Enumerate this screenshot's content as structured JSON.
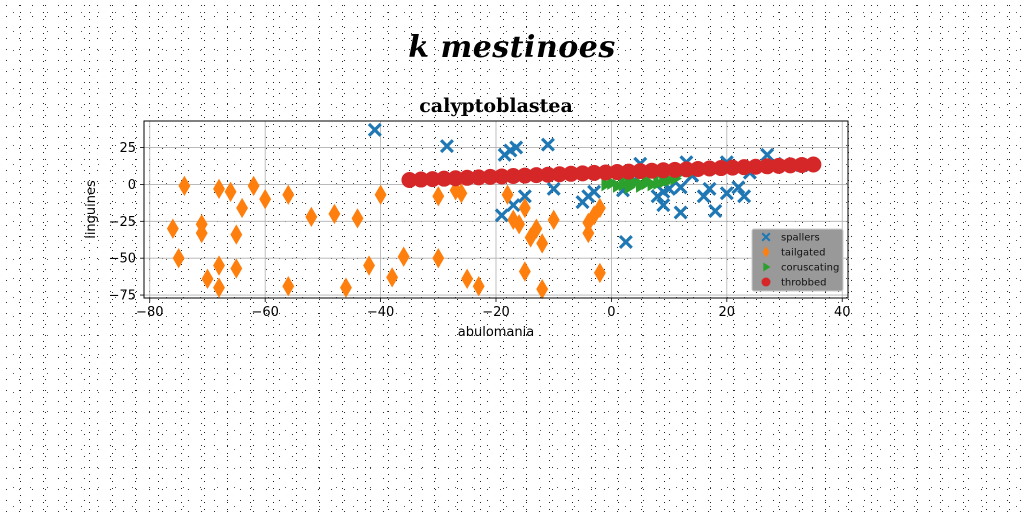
{
  "suptitle": "k mestinoes",
  "chart_data": {
    "type": "scatter",
    "title": "calyptoblastea",
    "xlabel": "abulomania",
    "ylabel": "linguines",
    "xlim": [
      -81,
      41
    ],
    "ylim": [
      -77,
      43
    ],
    "xticks": [
      -80,
      -60,
      -40,
      -20,
      0,
      20,
      40
    ],
    "yticks": [
      25,
      0,
      -25,
      -50,
      -75
    ],
    "xtick_labels": [
      "−80",
      "−60",
      "−40",
      "−20",
      "0",
      "20",
      "40"
    ],
    "ytick_labels": [
      "25",
      "0",
      "−25",
      "−50",
      "−75"
    ],
    "grid": true,
    "legend_position": "lower-right",
    "series": [
      {
        "name": "spallers",
        "marker": "X",
        "color": "#1f77b4",
        "points": [
          [
            -41,
            37
          ],
          [
            -28.5,
            26
          ],
          [
            -18.5,
            20
          ],
          [
            -17.5,
            23
          ],
          [
            -16.5,
            25
          ],
          [
            -11,
            27
          ],
          [
            -19,
            -21
          ],
          [
            -17,
            -14
          ],
          [
            -15,
            -8
          ],
          [
            -10,
            -3
          ],
          [
            -5,
            -12
          ],
          [
            -4,
            -8
          ],
          [
            -3,
            -5
          ],
          [
            2,
            -4
          ],
          [
            4,
            3
          ],
          [
            5,
            14
          ],
          [
            7,
            7
          ],
          [
            8,
            -8
          ],
          [
            9,
            -14
          ],
          [
            9,
            -5
          ],
          [
            10,
            -3
          ],
          [
            12,
            -19
          ],
          [
            12,
            -2
          ],
          [
            13,
            15
          ],
          [
            14,
            6
          ],
          [
            16,
            -8
          ],
          [
            17,
            -3
          ],
          [
            18,
            -18
          ],
          [
            20,
            15
          ],
          [
            20,
            -6
          ],
          [
            22,
            -2
          ],
          [
            23,
            -8
          ],
          [
            24,
            8
          ],
          [
            27,
            20
          ],
          [
            30,
            14
          ],
          [
            33,
            13
          ],
          [
            2.5,
            -39
          ]
        ]
      },
      {
        "name": "tailgated",
        "marker": "d",
        "color": "#ff7f0e",
        "points": [
          [
            -76,
            -30
          ],
          [
            -75,
            -50
          ],
          [
            -74,
            -1
          ],
          [
            -71,
            -27
          ],
          [
            -71,
            -33
          ],
          [
            -70,
            -64
          ],
          [
            -68,
            -55
          ],
          [
            -68,
            -70
          ],
          [
            -68,
            -3
          ],
          [
            -66,
            -5
          ],
          [
            -65,
            -34
          ],
          [
            -65,
            -57
          ],
          [
            -64,
            -16
          ],
          [
            -62,
            -1
          ],
          [
            -60,
            -10
          ],
          [
            -56,
            -7
          ],
          [
            -56,
            -69
          ],
          [
            -52,
            -22
          ],
          [
            -48,
            -20
          ],
          [
            -46,
            -70
          ],
          [
            -44,
            -23
          ],
          [
            -42,
            -55
          ],
          [
            -40,
            -7
          ],
          [
            -38,
            -63
          ],
          [
            -36,
            -49
          ],
          [
            -30,
            -8
          ],
          [
            -30,
            -50
          ],
          [
            -27,
            -4
          ],
          [
            -25,
            -64
          ],
          [
            -23,
            -69
          ],
          [
            -26,
            -6
          ],
          [
            -18,
            -7
          ],
          [
            -17,
            -24
          ],
          [
            -16,
            -27
          ],
          [
            -15,
            -16
          ],
          [
            -15,
            -59
          ],
          [
            -14,
            -36
          ],
          [
            -13,
            -30
          ],
          [
            -12,
            -40
          ],
          [
            -12,
            -71
          ],
          [
            -10,
            -24
          ],
          [
            -4,
            -26
          ],
          [
            -4,
            -33
          ],
          [
            -2,
            -16
          ],
          [
            -2,
            -60
          ],
          [
            -3,
            -21
          ]
        ]
      },
      {
        "name": "coruscating",
        "marker": ">",
        "color": "#2ca02c",
        "points": [
          [
            -1,
            0
          ],
          [
            0,
            1
          ],
          [
            1,
            -1
          ],
          [
            2,
            0
          ],
          [
            3,
            2
          ],
          [
            4,
            1
          ],
          [
            5,
            0
          ],
          [
            6,
            1
          ],
          [
            7,
            0
          ],
          [
            8,
            1
          ],
          [
            9,
            2
          ],
          [
            10,
            3
          ],
          [
            11,
            4
          ],
          [
            3,
            -2
          ],
          [
            5,
            -1
          ],
          [
            2,
            5
          ],
          [
            6,
            6
          ],
          [
            8,
            7
          ],
          [
            12,
            8
          ],
          [
            14,
            9
          ],
          [
            16,
            10
          ],
          [
            18,
            10
          ]
        ]
      },
      {
        "name": "throbbed",
        "marker": "o",
        "color": "#d62728",
        "points": [
          [
            -35,
            3
          ],
          [
            -33,
            3.3
          ],
          [
            -31,
            3.6
          ],
          [
            -29,
            3.9
          ],
          [
            -27,
            4.2
          ],
          [
            -25,
            4.5
          ],
          [
            -23,
            4.8
          ],
          [
            -21,
            5.1
          ],
          [
            -19,
            5.4
          ],
          [
            -17,
            5.7
          ],
          [
            -15,
            6
          ],
          [
            -13,
            6.3
          ],
          [
            -11,
            6.6
          ],
          [
            -9,
            6.9
          ],
          [
            -7,
            7.2
          ],
          [
            -5,
            7.5
          ],
          [
            -3,
            7.8
          ],
          [
            -1,
            8.1
          ],
          [
            1,
            8.4
          ],
          [
            3,
            8.7
          ],
          [
            5,
            9
          ],
          [
            7,
            9.3
          ],
          [
            9,
            9.6
          ],
          [
            11,
            9.9
          ],
          [
            13,
            10.2
          ],
          [
            15,
            10.5
          ],
          [
            17,
            10.8
          ],
          [
            19,
            11.1
          ],
          [
            21,
            11.4
          ],
          [
            23,
            11.7
          ],
          [
            25,
            12
          ],
          [
            27,
            12.3
          ],
          [
            29,
            12.6
          ],
          [
            31,
            12.9
          ],
          [
            33,
            13.2
          ],
          [
            35,
            13.5
          ]
        ]
      }
    ]
  }
}
